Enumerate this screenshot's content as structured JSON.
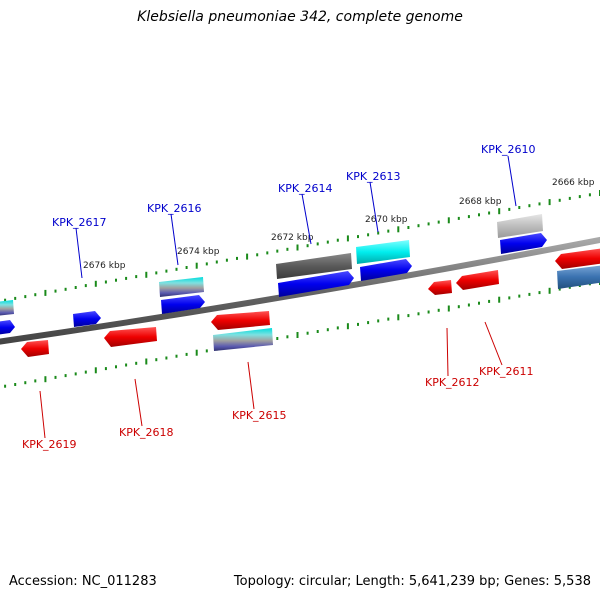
{
  "title": "Klebsiella pneumoniae 342, complete genome",
  "footer": {
    "accession": "Accession: NC_011283",
    "summary": "Topology: circular; Length: 5,641,239 bp; Genes: 5,538"
  },
  "colors": {
    "forward_label": "#0000cc",
    "reverse_label": "#cc0000",
    "tick": "#1a8a1a",
    "backbone": "#777777"
  },
  "scale_labels": [
    "2666 kbp",
    "2668 kbp",
    "2670 kbp",
    "2672 kbp",
    "2674 kbp",
    "2676 kbp"
  ],
  "gene_labels_forward": [
    "KPK_2610",
    "KPK_2613",
    "KPK_2614",
    "KPK_2616",
    "KPK_2617"
  ],
  "gene_labels_reverse": [
    "KPK_2611",
    "KPK_2612",
    "KPK_2615",
    "KPK_2618",
    "KPK_2619"
  ]
}
